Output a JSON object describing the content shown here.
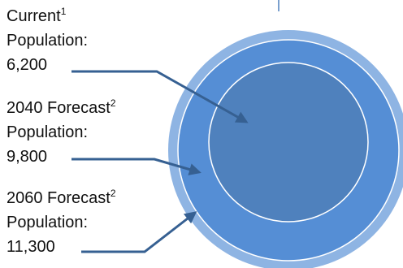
{
  "colors": {
    "outer_ring": "#8EB4E3",
    "middle_ring": "#558ED5",
    "inner_circle": "#4F81BD",
    "ring_border": "#FFFFFF",
    "arrow": "#366092",
    "stub_line": "#4F81BD"
  },
  "labels": [
    {
      "name": "Current",
      "sup": "1",
      "line2": "Population:",
      "value": "6,200"
    },
    {
      "name": "2040 Forecast",
      "sup": "2",
      "line2": "Population:",
      "value": "9,800"
    },
    {
      "name": "2060 Forecast",
      "sup": "2",
      "line2": "Population:",
      "value": "11,300"
    }
  ]
}
